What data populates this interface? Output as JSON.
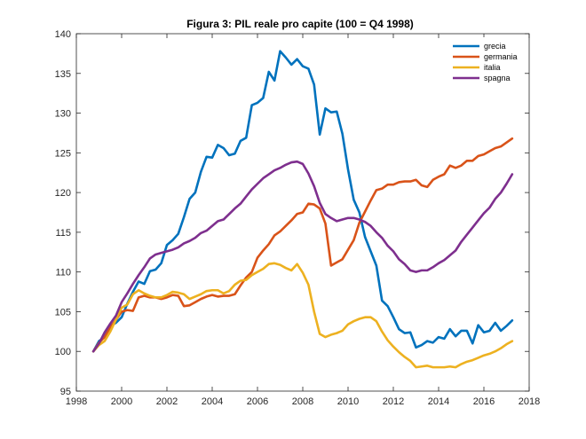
{
  "chart_data": {
    "type": "line",
    "title": "Figura 3: PIL reale pro capite (100 = Q4 1998)",
    "xlabel": "",
    "ylabel": "",
    "xlim": [
      1998,
      2018
    ],
    "ylim": [
      95,
      140
    ],
    "xticks": [
      1998,
      2000,
      2002,
      2004,
      2006,
      2008,
      2010,
      2012,
      2014,
      2016,
      2018
    ],
    "yticks": [
      95,
      100,
      105,
      110,
      115,
      120,
      125,
      130,
      135,
      140
    ],
    "grid": false,
    "legend": "top-right",
    "series": [
      {
        "name": "grecia",
        "color": "#0072BD",
        "x": [
          1998.75,
          1999.0,
          1999.25,
          1999.5,
          1999.75,
          2000.0,
          2000.25,
          2000.5,
          2000.75,
          2001.0,
          2001.25,
          2001.5,
          2001.75,
          2002.0,
          2002.25,
          2002.5,
          2002.75,
          2003.0,
          2003.25,
          2003.5,
          2003.75,
          2004.0,
          2004.25,
          2004.5,
          2004.75,
          2005.0,
          2005.25,
          2005.5,
          2005.75,
          2006.0,
          2006.25,
          2006.5,
          2006.75,
          2007.0,
          2007.25,
          2007.5,
          2007.75,
          2008.0,
          2008.25,
          2008.5,
          2008.75,
          2009.0,
          2009.25,
          2009.5,
          2009.75,
          2010.0,
          2010.25,
          2010.5,
          2010.75,
          2011.0,
          2011.25,
          2011.5,
          2011.75,
          2012.0,
          2012.25,
          2012.5,
          2012.75,
          2013.0,
          2013.25,
          2013.5,
          2013.75,
          2014.0,
          2014.25,
          2014.5,
          2014.75,
          2015.0,
          2015.25,
          2015.5,
          2015.75,
          2016.0,
          2016.25,
          2016.5,
          2016.75,
          2017.0,
          2017.25
        ],
        "y": [
          100.0,
          101.3,
          101.8,
          103.2,
          103.6,
          104.3,
          106.0,
          107.5,
          108.8,
          108.5,
          110.1,
          110.3,
          111.1,
          113.4,
          114.0,
          114.8,
          116.9,
          119.2,
          120.0,
          122.6,
          124.5,
          124.4,
          126.0,
          125.6,
          124.7,
          124.9,
          126.5,
          126.9,
          131.0,
          131.3,
          131.9,
          135.2,
          134.1,
          137.8,
          137.0,
          136.1,
          136.8,
          135.9,
          135.6,
          133.6,
          127.3,
          130.6,
          130.1,
          130.2,
          127.4,
          122.9,
          119.1,
          117.5,
          114.4,
          112.6,
          110.8,
          106.4,
          105.7,
          104.3,
          102.8,
          102.3,
          102.4,
          100.5,
          100.8,
          101.3,
          101.1,
          101.8,
          101.6,
          102.8,
          101.9,
          102.6,
          102.6,
          101.0,
          103.3,
          102.4,
          102.6,
          103.6,
          102.6,
          103.2,
          103.9
        ]
      },
      {
        "name": "germania",
        "color": "#D95319",
        "x": [
          1998.75,
          1999.0,
          1999.25,
          1999.5,
          1999.75,
          2000.0,
          2000.25,
          2000.5,
          2000.75,
          2001.0,
          2001.25,
          2001.5,
          2001.75,
          2002.0,
          2002.25,
          2002.5,
          2002.75,
          2003.0,
          2003.25,
          2003.5,
          2003.75,
          2004.0,
          2004.25,
          2004.5,
          2004.75,
          2005.0,
          2005.25,
          2005.5,
          2005.75,
          2006.0,
          2006.25,
          2006.5,
          2006.75,
          2007.0,
          2007.25,
          2007.5,
          2007.75,
          2008.0,
          2008.25,
          2008.5,
          2008.75,
          2009.0,
          2009.25,
          2009.5,
          2009.75,
          2010.0,
          2010.25,
          2010.5,
          2010.75,
          2011.0,
          2011.25,
          2011.5,
          2011.75,
          2012.0,
          2012.25,
          2012.5,
          2012.75,
          2013.0,
          2013.25,
          2013.5,
          2013.75,
          2014.0,
          2014.25,
          2014.5,
          2014.75,
          2015.0,
          2015.25,
          2015.5,
          2015.75,
          2016.0,
          2016.25,
          2016.5,
          2016.75,
          2017.0,
          2017.25
        ],
        "y": [
          100.0,
          101.1,
          101.8,
          103.0,
          104.0,
          105.0,
          105.2,
          105.1,
          106.8,
          107.0,
          106.8,
          106.8,
          106.6,
          106.8,
          107.1,
          107.0,
          105.7,
          105.8,
          106.2,
          106.6,
          106.9,
          107.1,
          106.9,
          107.0,
          107.0,
          107.2,
          108.3,
          109.3,
          110.0,
          111.8,
          112.7,
          113.5,
          114.6,
          115.1,
          115.8,
          116.5,
          117.3,
          117.5,
          118.6,
          118.5,
          118.0,
          116.1,
          110.8,
          111.2,
          111.6,
          112.8,
          114.0,
          116.2,
          117.6,
          119.0,
          120.3,
          120.5,
          121.0,
          121.0,
          121.3,
          121.4,
          121.4,
          121.6,
          120.9,
          120.7,
          121.6,
          122.0,
          122.3,
          123.4,
          123.1,
          123.4,
          124.0,
          124.0,
          124.6,
          124.8,
          125.2,
          125.6,
          125.8,
          126.3,
          126.8
        ]
      },
      {
        "name": "italia",
        "color": "#EDB120",
        "x": [
          1998.75,
          1999.0,
          1999.25,
          1999.5,
          1999.75,
          2000.0,
          2000.25,
          2000.5,
          2000.75,
          2001.0,
          2001.25,
          2001.5,
          2001.75,
          2002.0,
          2002.25,
          2002.5,
          2002.75,
          2003.0,
          2003.25,
          2003.5,
          2003.75,
          2004.0,
          2004.25,
          2004.5,
          2004.75,
          2005.0,
          2005.25,
          2005.5,
          2005.75,
          2006.0,
          2006.25,
          2006.5,
          2006.75,
          2007.0,
          2007.25,
          2007.5,
          2007.75,
          2008.0,
          2008.25,
          2008.5,
          2008.75,
          2009.0,
          2009.25,
          2009.5,
          2009.75,
          2010.0,
          2010.25,
          2010.5,
          2010.75,
          2011.0,
          2011.25,
          2011.5,
          2011.75,
          2012.0,
          2012.25,
          2012.5,
          2012.75,
          2013.0,
          2013.25,
          2013.5,
          2013.75,
          2014.0,
          2014.25,
          2014.5,
          2014.75,
          2015.0,
          2015.25,
          2015.5,
          2015.75,
          2016.0,
          2016.25,
          2016.5,
          2016.75,
          2017.0,
          2017.25
        ],
        "y": [
          100.0,
          100.8,
          101.3,
          102.5,
          104.0,
          105.5,
          105.9,
          107.2,
          107.7,
          107.3,
          107.0,
          106.8,
          106.8,
          107.1,
          107.5,
          107.4,
          107.2,
          106.6,
          106.9,
          107.2,
          107.6,
          107.7,
          107.7,
          107.3,
          107.6,
          108.4,
          108.9,
          109.0,
          109.6,
          110.0,
          110.4,
          111.0,
          111.1,
          110.9,
          110.5,
          110.2,
          111.0,
          109.9,
          108.4,
          105.0,
          102.2,
          101.8,
          102.1,
          102.3,
          102.6,
          103.4,
          103.8,
          104.1,
          104.3,
          104.3,
          103.8,
          102.5,
          101.4,
          100.6,
          99.9,
          99.3,
          98.8,
          98.0,
          98.1,
          98.2,
          98.0,
          98.0,
          98.0,
          98.1,
          98.0,
          98.4,
          98.7,
          98.9,
          99.2,
          99.5,
          99.7,
          100.0,
          100.4,
          100.9,
          101.3
        ]
      },
      {
        "name": "spagna",
        "color": "#7E2F8E",
        "x": [
          1998.75,
          1999.0,
          1999.25,
          1999.5,
          1999.75,
          2000.0,
          2000.25,
          2000.5,
          2000.75,
          2001.0,
          2001.25,
          2001.5,
          2001.75,
          2002.0,
          2002.25,
          2002.5,
          2002.75,
          2003.0,
          2003.25,
          2003.5,
          2003.75,
          2004.0,
          2004.25,
          2004.5,
          2004.75,
          2005.0,
          2005.25,
          2005.5,
          2005.75,
          2006.0,
          2006.25,
          2006.5,
          2006.75,
          2007.0,
          2007.25,
          2007.5,
          2007.75,
          2008.0,
          2008.25,
          2008.5,
          2008.75,
          2009.0,
          2009.25,
          2009.5,
          2009.75,
          2010.0,
          2010.25,
          2010.5,
          2010.75,
          2011.0,
          2011.25,
          2011.5,
          2011.75,
          2012.0,
          2012.25,
          2012.5,
          2012.75,
          2013.0,
          2013.25,
          2013.5,
          2013.75,
          2014.0,
          2014.25,
          2014.5,
          2014.75,
          2015.0,
          2015.25,
          2015.5,
          2015.75,
          2016.0,
          2016.25,
          2016.5,
          2016.75,
          2017.0,
          2017.25
        ],
        "y": [
          100.0,
          101.0,
          102.4,
          103.5,
          104.5,
          106.2,
          107.3,
          108.5,
          109.6,
          110.6,
          111.7,
          112.2,
          112.4,
          112.6,
          112.8,
          113.1,
          113.6,
          113.9,
          114.3,
          114.9,
          115.2,
          115.8,
          116.4,
          116.6,
          117.3,
          118.0,
          118.6,
          119.5,
          120.4,
          121.1,
          121.8,
          122.3,
          122.8,
          123.1,
          123.5,
          123.8,
          123.9,
          123.6,
          122.4,
          120.8,
          118.7,
          117.3,
          116.8,
          116.4,
          116.6,
          116.8,
          116.8,
          116.6,
          116.3,
          115.8,
          115.0,
          114.3,
          113.3,
          112.6,
          111.6,
          111.0,
          110.2,
          110.0,
          110.2,
          110.2,
          110.6,
          111.1,
          111.5,
          112.1,
          112.7,
          113.8,
          114.7,
          115.6,
          116.5,
          117.4,
          118.1,
          119.2,
          120.0,
          121.1,
          122.3
        ]
      }
    ]
  }
}
